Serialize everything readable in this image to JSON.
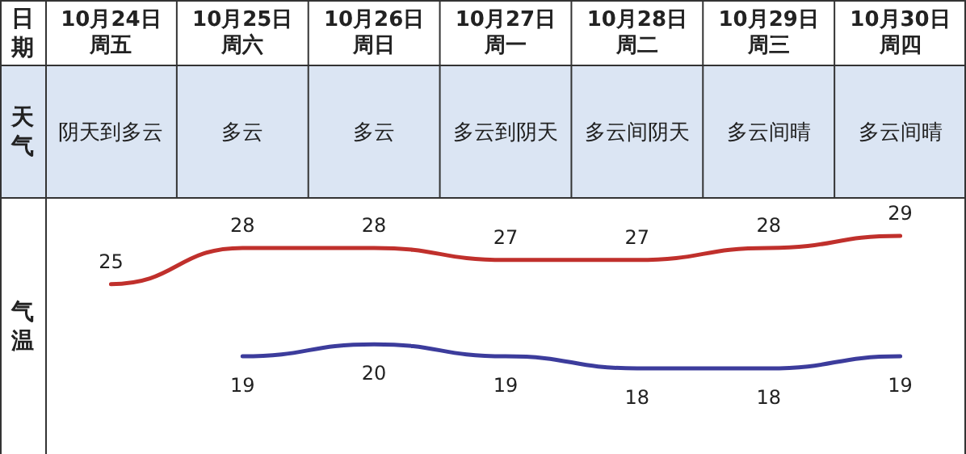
{
  "chart_data": {
    "type": "line",
    "xlabel": "日期",
    "ylabel": "气温",
    "categories": [
      "10月24日周五",
      "10月25日周六",
      "10月26日周日",
      "10月27日周一",
      "10月28日周二",
      "10月29日周三",
      "10月30日周四"
    ],
    "series": [
      {
        "color": "#c0302c",
        "values": [
          25,
          28,
          28,
          27,
          27,
          28,
          29
        ]
      },
      {
        "color": "#3c3c9c",
        "values": [
          null,
          19,
          20,
          19,
          18,
          18,
          19
        ]
      }
    ],
    "data_labels": true,
    "annotations": [
      "天气",
      "阴天到多云",
      "多云",
      "多云",
      "多云到阴天",
      "多云间阴天",
      "多云间晴",
      "多云间晴"
    ]
  }
}
